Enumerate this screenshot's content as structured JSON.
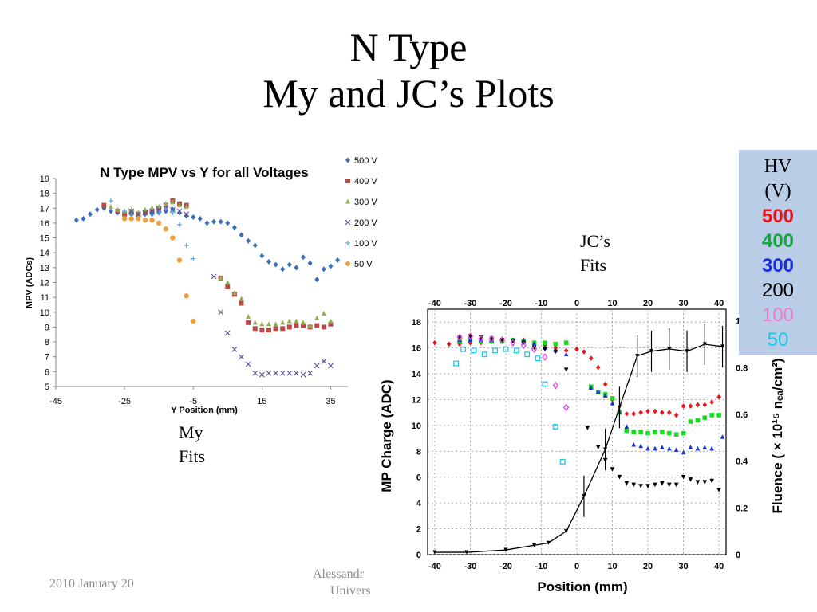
{
  "slide": {
    "title_line1": "N Type",
    "title_line2": "My and JC’s Plots",
    "my_fits_line1": "My",
    "my_fits_line2": "Fits",
    "jc_fits_line1": "JC’s",
    "jc_fits_line2": "Fits",
    "footer_date": "2010 January 20",
    "footer_author_frag": "Alessandr",
    "footer_univ_frag": "Univers",
    "hv_legend": {
      "header1": "HV",
      "header2": "(V)",
      "entries": [
        {
          "label": "500",
          "color": "#e8141e"
        },
        {
          "label": "400",
          "color": "#16a83c"
        },
        {
          "label": "300",
          "color": "#1a2fd6"
        },
        {
          "label": "200",
          "color": "#000000"
        },
        {
          "label": "100",
          "color": "#f07ad2"
        },
        {
          "label": "50",
          "color": "#1ec8e6"
        }
      ]
    }
  },
  "chart_data": [
    {
      "type": "scatter",
      "title": "N Type MPV vs Y for all Voltages",
      "xlabel": "Y Position (mm)",
      "ylabel": "MPV (ADCs)",
      "xlim": [
        -45,
        40
      ],
      "ylim": [
        5,
        19
      ],
      "xticks": [
        -45,
        -25,
        -5,
        15,
        35
      ],
      "yticks": [
        5,
        6,
        7,
        8,
        9,
        10,
        11,
        12,
        13,
        14,
        15,
        16,
        17,
        18,
        19
      ],
      "grid": false,
      "legend_position": "top-right",
      "series": [
        {
          "name": "500 V",
          "color": "#3b6fb6",
          "marker": "diamond",
          "x": [
            -39,
            -37,
            -35,
            -33,
            -31,
            -29,
            -27,
            -25,
            -23,
            -21,
            -19,
            -17,
            -15,
            -13,
            -11,
            -9,
            -7,
            -5,
            -3,
            -1,
            1,
            3,
            5,
            7,
            9,
            11,
            13,
            15,
            17,
            19,
            21,
            23,
            25,
            27,
            29,
            31,
            33,
            35,
            37
          ],
          "y": [
            16.2,
            16.3,
            16.6,
            16.9,
            17.0,
            16.8,
            16.7,
            16.7,
            16.6,
            16.6,
            16.6,
            16.6,
            16.7,
            16.8,
            16.9,
            16.7,
            16.5,
            16.4,
            16.3,
            16.0,
            16.1,
            16.1,
            16.0,
            15.7,
            15.2,
            14.8,
            14.5,
            13.8,
            13.4,
            13.2,
            12.9,
            13.2,
            13.0,
            13.7,
            13.3,
            12.2,
            12.9,
            13.1,
            13.5
          ]
        },
        {
          "name": "400 V",
          "color": "#b84a4a",
          "marker": "square",
          "x": [
            -31,
            -27,
            -25,
            -23,
            -21,
            -19,
            -17,
            -15,
            -13,
            -11,
            -9,
            -7,
            3,
            5,
            7,
            9,
            11,
            13,
            15,
            17,
            19,
            21,
            23,
            25,
            27,
            29,
            31,
            33,
            35
          ],
          "y": [
            17.2,
            16.8,
            16.6,
            16.7,
            16.6,
            16.7,
            16.8,
            17.0,
            17.2,
            17.5,
            17.3,
            17.2,
            12.3,
            11.7,
            11.2,
            10.6,
            9.3,
            8.9,
            8.8,
            8.8,
            8.9,
            8.9,
            9.0,
            9.1,
            9.1,
            9.0,
            9.1,
            9.0,
            9.2
          ]
        },
        {
          "name": "300 V",
          "color": "#8fb04c",
          "marker": "triangle",
          "x": [
            -29,
            -27,
            -25,
            -23,
            -21,
            -19,
            -17,
            -15,
            -13,
            -11,
            -9,
            -7,
            3,
            5,
            7,
            9,
            11,
            13,
            15,
            17,
            19,
            21,
            23,
            25,
            27,
            29,
            31,
            33,
            35
          ],
          "y": [
            17.1,
            16.9,
            16.8,
            16.9,
            16.7,
            16.9,
            17.0,
            17.1,
            17.3,
            17.4,
            17.2,
            17.1,
            12.3,
            12.0,
            11.3,
            10.9,
            9.7,
            9.3,
            9.2,
            9.2,
            9.2,
            9.3,
            9.4,
            9.4,
            9.3,
            9.1,
            9.6,
            9.9,
            9.4
          ]
        },
        {
          "name": "200 V",
          "color": "#5a4a9a",
          "marker": "x",
          "x": [
            -23,
            -21,
            -19,
            -17,
            -15,
            -13,
            -11,
            -9,
            -7,
            1,
            3,
            5,
            7,
            9,
            11,
            13,
            15,
            17,
            19,
            21,
            23,
            25,
            27,
            29,
            31,
            33,
            35
          ],
          "y": [
            16.8,
            16.6,
            16.7,
            16.8,
            16.9,
            17.0,
            16.9,
            16.8,
            16.6,
            12.4,
            10.0,
            8.6,
            7.5,
            7.0,
            6.5,
            5.9,
            5.8,
            5.9,
            5.9,
            5.9,
            5.9,
            5.9,
            5.8,
            5.9,
            6.4,
            6.7,
            6.4
          ]
        },
        {
          "name": "100 V",
          "color": "#4aa6d6",
          "marker": "plus",
          "x": [
            -29,
            -25,
            -23,
            -21,
            -19,
            -17,
            -15,
            -13,
            -11,
            -9,
            -7,
            -5
          ],
          "y": [
            17.5,
            16.8,
            16.6,
            16.4,
            16.2,
            16.6,
            16.7,
            17.0,
            16.7,
            15.9,
            14.5,
            13.6
          ]
        },
        {
          "name": "50 V",
          "color": "#f0a03c",
          "marker": "circle",
          "x": [
            -25,
            -23,
            -21,
            -19,
            -17,
            -15,
            -13,
            -11,
            -9,
            -7,
            -5
          ],
          "y": [
            16.3,
            16.3,
            16.3,
            16.2,
            16.2,
            16.0,
            15.6,
            15.0,
            13.5,
            11.1,
            9.4
          ]
        }
      ]
    },
    {
      "type": "scatter",
      "title": "",
      "xlabel": "Position (mm)",
      "ylabel": "MP Charge (ADC)",
      "y2label": "Fluence ( × 10¹⁵ nₑₐ/cm²)",
      "xlim": [
        -42,
        42
      ],
      "ylim": [
        0,
        19
      ],
      "y2lim": [
        0,
        1.05
      ],
      "xticks": [
        -40,
        -30,
        -20,
        -10,
        0,
        10,
        20,
        30,
        40
      ],
      "yticks": [
        0,
        2,
        4,
        6,
        8,
        10,
        12,
        14,
        16,
        18
      ],
      "y2ticks": [
        0,
        0.2,
        0.4,
        0.6,
        0.8,
        1
      ],
      "grid": true,
      "series": [
        {
          "name": "500",
          "color": "#e8141e",
          "marker": "diamond",
          "x": [
            -40,
            -36,
            -33,
            -30,
            -27,
            -24,
            -21,
            -18,
            -15,
            -12,
            -9,
            -6,
            -3,
            0,
            2,
            4,
            6,
            8,
            10,
            12,
            14,
            16,
            18,
            20,
            22,
            24,
            26,
            28,
            30,
            32,
            34,
            36,
            38,
            40
          ],
          "y": [
            16.4,
            16.3,
            16.3,
            16.4,
            16.4,
            16.5,
            16.5,
            16.6,
            16.6,
            16.4,
            16.2,
            16.0,
            15.8,
            15.9,
            15.7,
            15.2,
            14.5,
            13.2,
            12.0,
            11.1,
            10.9,
            10.9,
            11.0,
            11.1,
            11.1,
            11.0,
            11.0,
            10.8,
            11.5,
            11.5,
            11.6,
            11.6,
            11.8,
            12.2
          ]
        },
        {
          "name": "400",
          "color": "#16e01e",
          "marker": "square",
          "x": [
            -33,
            -30,
            -27,
            -24,
            -21,
            -18,
            -15,
            -12,
            -9,
            -6,
            -3,
            4,
            6,
            8,
            10,
            12,
            14,
            16,
            18,
            20,
            22,
            24,
            26,
            28,
            30,
            32,
            34,
            36,
            38,
            40
          ],
          "y": [
            16.5,
            16.6,
            16.5,
            16.5,
            16.5,
            16.6,
            16.5,
            16.4,
            16.4,
            16.3,
            16.4,
            13.0,
            12.6,
            12.4,
            12.1,
            11.0,
            9.6,
            9.5,
            9.5,
            9.4,
            9.5,
            9.5,
            9.4,
            9.3,
            9.4,
            10.3,
            10.4,
            10.6,
            10.8,
            10.8
          ]
        },
        {
          "name": "300",
          "color": "#1a2fd6",
          "marker": "triangle",
          "x": [
            -33,
            -30,
            -27,
            -24,
            -21,
            -18,
            -15,
            -12,
            -9,
            -6,
            -3,
            4,
            6,
            8,
            10,
            12,
            14,
            16,
            18,
            20,
            22,
            24,
            26,
            28,
            30,
            32,
            34,
            36,
            38,
            41
          ],
          "y": [
            16.6,
            16.6,
            16.6,
            16.6,
            16.7,
            16.6,
            16.5,
            16.3,
            16.0,
            15.8,
            15.5,
            12.9,
            12.6,
            12.3,
            11.7,
            11.0,
            9.9,
            8.5,
            8.4,
            8.2,
            8.2,
            8.3,
            8.2,
            8.1,
            7.9,
            8.3,
            8.2,
            8.3,
            8.2,
            9.1
          ]
        },
        {
          "name": "200",
          "color": "#000000",
          "marker": "triangle-down",
          "x": [
            -33,
            -30,
            -27,
            -24,
            -21,
            -18,
            -15,
            -12,
            -9,
            -6,
            -3,
            3,
            6,
            8,
            10,
            12,
            14,
            16,
            18,
            20,
            22,
            24,
            26,
            28,
            30,
            32,
            34,
            36,
            38,
            40
          ],
          "y": [
            16.8,
            16.9,
            16.8,
            16.7,
            16.6,
            16.5,
            16.4,
            16.0,
            15.9,
            15.7,
            14.3,
            9.8,
            8.3,
            7.3,
            6.6,
            6.0,
            5.5,
            5.4,
            5.3,
            5.3,
            5.4,
            5.5,
            5.4,
            5.4,
            6.0,
            5.8,
            5.6,
            5.6,
            5.7,
            5.0
          ]
        },
        {
          "name": "100",
          "color": "#e040e0",
          "marker": "diamond-open",
          "x": [
            -33,
            -30,
            -27,
            -24,
            -21,
            -18,
            -15,
            -12,
            -9,
            -6,
            -3
          ],
          "y": [
            16.8,
            16.9,
            16.7,
            16.7,
            16.6,
            16.4,
            16.2,
            15.9,
            15.3,
            13.1,
            11.4
          ]
        },
        {
          "name": "50",
          "color": "#1ec8e6",
          "marker": "square-open",
          "x": [
            -34,
            -32,
            -29,
            -26,
            -23,
            -20,
            -17,
            -14,
            -11,
            -9,
            -6,
            -4
          ],
          "y": [
            14.8,
            15.9,
            15.8,
            15.5,
            15.8,
            15.9,
            15.8,
            15.5,
            15.2,
            13.2,
            9.9,
            7.2
          ]
        },
        {
          "name": "fluence",
          "color": "#000000",
          "marker": "triangle-down-line",
          "axis": "y2",
          "x": [
            -40,
            -31,
            -20,
            -12,
            -8,
            -3,
            2,
            8,
            12,
            17,
            21,
            26,
            31,
            36,
            41
          ],
          "y2": [
            0.01,
            0.01,
            0.02,
            0.04,
            0.05,
            0.1,
            0.25,
            0.45,
            0.63,
            0.85,
            0.87,
            0.88,
            0.87,
            0.9,
            0.89
          ]
        }
      ]
    }
  ]
}
